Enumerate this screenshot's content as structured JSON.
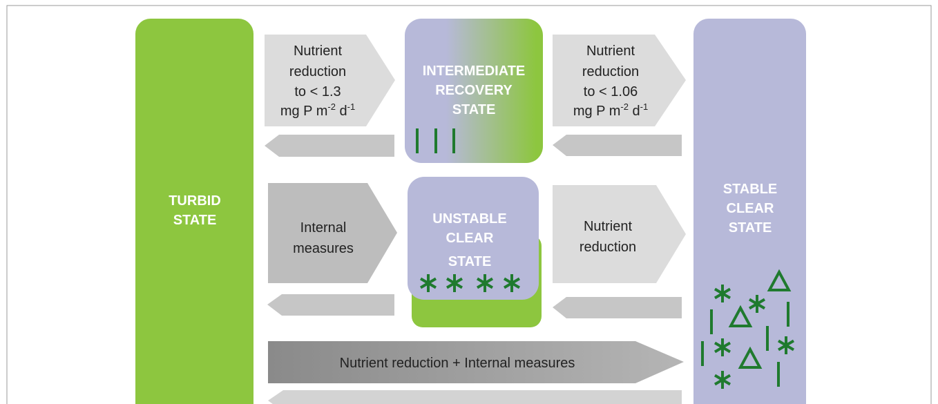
{
  "states": [
    {
      "lines": [
        "TURBID",
        "STATE"
      ]
    },
    {
      "lines": [
        "INTERMEDIATE",
        "RECOVERY",
        "STATE"
      ]
    },
    {
      "lines": [
        "UNSTABLE",
        "CLEAR",
        "STATE"
      ]
    },
    {
      "lines": [
        "STABLE",
        "CLEAR",
        "STATE"
      ]
    }
  ],
  "arrows": [
    {
      "lines": [
        "Nutrient",
        "reduction",
        "to < 1.3"
      ],
      "unit": {
        "base": "mg P m",
        "exp1": "-2",
        "mid": " d",
        "exp2": "-1"
      }
    },
    {
      "lines": [
        "Nutrient",
        "reduction",
        "to < 1.06"
      ],
      "unit": {
        "base": "mg P m",
        "exp1": "-2",
        "mid": " d",
        "exp2": "-1"
      }
    },
    {
      "lines": [
        "Internal",
        "measures"
      ]
    },
    {
      "lines": [
        "Nutrient",
        "reduction"
      ]
    },
    {
      "lines": [
        "Nutrient reduction + Internal measures"
      ]
    }
  ]
}
